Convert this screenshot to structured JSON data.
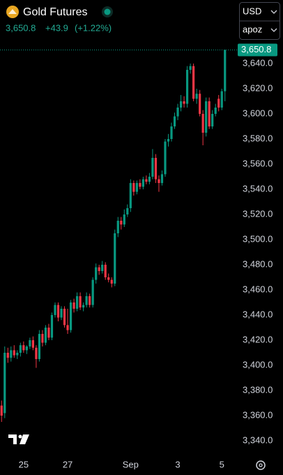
{
  "header": {
    "title": "Gold Futures",
    "currency": "USD",
    "account": "apoz"
  },
  "chart_data": {
    "type": "candlestick",
    "last_price": {
      "value": 3650.8,
      "label": "3,650.8"
    },
    "change": {
      "value": 43.9,
      "label": "+43.9"
    },
    "change_percent": {
      "value": 1.22,
      "label": "(+1.22%)"
    },
    "categories": [
      null,
      null,
      null,
      null,
      null,
      null,
      null,
      "25",
      null,
      null,
      null,
      null,
      null,
      null,
      null,
      null,
      null,
      null,
      null,
      null,
      null,
      "27",
      null,
      null,
      null,
      null,
      null,
      null,
      null,
      null,
      null,
      null,
      null,
      null,
      null,
      null,
      null,
      null,
      null,
      null,
      null,
      "Sep",
      null,
      null,
      null,
      null,
      null,
      null,
      null,
      null,
      null,
      null,
      null,
      null,
      null,
      null,
      "3",
      null,
      null,
      null,
      null,
      null,
      null,
      null,
      null,
      null,
      null,
      null,
      null,
      null,
      "5",
      null
    ],
    "up_color": "#089981",
    "down_color": "#f23645",
    "open": [
      3368,
      3362,
      3410,
      3406,
      3412,
      3408,
      3410,
      3416,
      3412,
      3415,
      3420,
      3414,
      3405,
      3425,
      3418,
      3430,
      3422,
      3440,
      3448,
      3438,
      3445,
      3432,
      3428,
      3450,
      3445,
      3455,
      3446,
      3448,
      3455,
      3448,
      3468,
      3478,
      3475,
      3480,
      3470,
      3468,
      3465,
      3505,
      3515,
      3512,
      3520,
      3525,
      3545,
      3538,
      3545,
      3542,
      3548,
      3546,
      3550,
      3565,
      3548,
      3545,
      3552,
      3578,
      3580,
      3590,
      3598,
      3605,
      3610,
      3608,
      3635,
      3638,
      3612,
      3616,
      3600,
      3585,
      3610,
      3590,
      3600,
      3612,
      3605,
      3618
    ],
    "high": [
      3372,
      3415,
      3414,
      3415,
      3416,
      3412,
      3418,
      3419,
      3416,
      3422,
      3423,
      3416,
      3428,
      3428,
      3432,
      3433,
      3442,
      3450,
      3450,
      3447,
      3447,
      3445,
      3452,
      3453,
      3458,
      3458,
      3450,
      3458,
      3457,
      3470,
      3481,
      3480,
      3483,
      3482,
      3473,
      3470,
      3508,
      3518,
      3518,
      3524,
      3528,
      3548,
      3547,
      3547,
      3548,
      3550,
      3551,
      3553,
      3572,
      3568,
      3551,
      3555,
      3580,
      3584,
      3593,
      3601,
      3608,
      3615,
      3614,
      3638,
      3640,
      3640,
      3620,
      3619,
      3603,
      3613,
      3613,
      3603,
      3608,
      3615,
      3620,
      3651
    ],
    "low": [
      3355,
      3358,
      3402,
      3403,
      3406,
      3405,
      3407,
      3410,
      3409,
      3413,
      3412,
      3398,
      3403,
      3415,
      3416,
      3420,
      3420,
      3438,
      3435,
      3436,
      3430,
      3425,
      3426,
      3442,
      3443,
      3444,
      3443,
      3446,
      3446,
      3446,
      3465,
      3472,
      3473,
      3468,
      3466,
      3462,
      3463,
      3502,
      3508,
      3510,
      3518,
      3522,
      3535,
      3536,
      3540,
      3540,
      3544,
      3544,
      3548,
      3545,
      3538,
      3543,
      3550,
      3574,
      3578,
      3588,
      3595,
      3602,
      3605,
      3605,
      3632,
      3610,
      3608,
      3598,
      3575,
      3582,
      3588,
      3588,
      3598,
      3602,
      3603,
      3610
    ],
    "close": [
      3360,
      3410,
      3406,
      3412,
      3408,
      3410,
      3416,
      3412,
      3415,
      3420,
      3414,
      3405,
      3425,
      3418,
      3430,
      3422,
      3440,
      3448,
      3438,
      3445,
      3432,
      3428,
      3450,
      3445,
      3455,
      3446,
      3448,
      3455,
      3448,
      3468,
      3478,
      3475,
      3480,
      3470,
      3468,
      3465,
      3505,
      3515,
      3512,
      3520,
      3525,
      3545,
      3538,
      3545,
      3542,
      3548,
      3546,
      3550,
      3565,
      3548,
      3545,
      3552,
      3578,
      3580,
      3590,
      3598,
      3605,
      3610,
      3608,
      3635,
      3638,
      3612,
      3616,
      3600,
      3585,
      3610,
      3590,
      3600,
      3605,
      3605,
      3618,
      3650.8
    ],
    "ylim": [
      3330,
      3660
    ],
    "yticks": [
      {
        "value": 3340,
        "label": "3,340.0"
      },
      {
        "value": 3360,
        "label": "3,360.0"
      },
      {
        "value": 3380,
        "label": "3,380.0"
      },
      {
        "value": 3400,
        "label": "3,400.0"
      },
      {
        "value": 3420,
        "label": "3,420.0"
      },
      {
        "value": 3440,
        "label": "3,440.0"
      },
      {
        "value": 3460,
        "label": "3,460.0"
      },
      {
        "value": 3480,
        "label": "3,480.0"
      },
      {
        "value": 3500,
        "label": "3,500.0"
      },
      {
        "value": 3520,
        "label": "3,520.0"
      },
      {
        "value": 3540,
        "label": "3,540.0"
      },
      {
        "value": 3560,
        "label": "3,560.0"
      },
      {
        "value": 3580,
        "label": "3,580.0"
      },
      {
        "value": 3600,
        "label": "3,600.0"
      },
      {
        "value": 3620,
        "label": "3,620.0"
      },
      {
        "value": 3640,
        "label": "3,640.0"
      }
    ]
  }
}
